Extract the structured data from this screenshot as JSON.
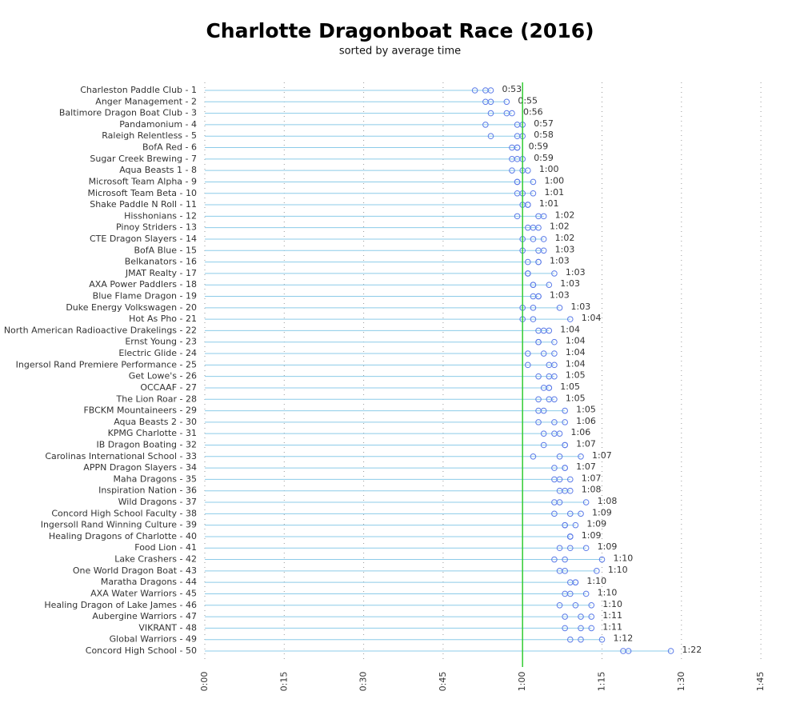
{
  "chart_data": {
    "type": "dotplot",
    "title": "Charlotte Dragonboat Race (2016)",
    "subtitle": "sorted by average time",
    "categories": [
      "Charleston Paddle Club - 1",
      "Anger Management - 2",
      "Baltimore Dragon Boat Club - 3",
      "Pandamonium - 4",
      "Raleigh Relentless - 5",
      "BofA Red - 6",
      "Sugar Creek Brewing - 7",
      "Aqua Beasts 1 - 8",
      "Microsoft Team Alpha - 9",
      "Microsoft Team Beta - 10",
      "Shake Paddle N Roll - 11",
      "Hisshonians - 12",
      "Pinoy Striders - 13",
      "CTE Dragon Slayers - 14",
      "BofA Blue - 15",
      "Belkanators - 16",
      "JMAT Realty - 17",
      "AXA Power Paddlers - 18",
      "Blue Flame Dragon - 19",
      "Duke Energy Volkswagen - 20",
      "Hot As Pho - 21",
      "North American Radioactive Drakelings - 22",
      "Ernst Young - 23",
      "Electric Glide - 24",
      "Ingersol Rand Premiere Performance - 25",
      "Get Lowe's - 26",
      "OCCAAF - 27",
      "The Lion Roar - 28",
      "FBCKM Mountaineers - 29",
      "Aqua Beasts 2 - 30",
      "KPMG Charlotte - 31",
      "IB Dragon Boating - 32",
      "Carolinas International School - 33",
      "APPN Dragon Slayers - 34",
      "Maha Dragons - 35",
      "Inspiration Nation - 36",
      "Wild Dragons - 37",
      "Concord High School Faculty - 38",
      "Ingersoll Rand Winning Culture - 39",
      "Healing Dragons of Charlotte - 40",
      "Food Lion - 41",
      "Lake Crashers - 42",
      "One World Dragon Boat - 43",
      "Maratha Dragons - 44",
      "AXA Water Warriors - 45",
      "Healing Dragon of Lake James - 46",
      "Aubergine Warriors - 47",
      "VIKRANT - 48",
      "Global Warriors - 49",
      "Concord High School - 50"
    ],
    "series": [
      {
        "color": "#5b7be8",
        "values": [
          51,
          53,
          54,
          53,
          54,
          58,
          58,
          58,
          59,
          59,
          60,
          59,
          61,
          60,
          60,
          61,
          61,
          62,
          62,
          60,
          60,
          63,
          63,
          61,
          61,
          63,
          64,
          63,
          63,
          63,
          64,
          64,
          62,
          66,
          66,
          67,
          66,
          66,
          68,
          69,
          67,
          66,
          67,
          69,
          68,
          67,
          68,
          68,
          69,
          79
        ]
      },
      {
        "color": "#5b7be8",
        "values": [
          53,
          54,
          57,
          59,
          59,
          59,
          59,
          60,
          59,
          60,
          61,
          63,
          62,
          62,
          63,
          63,
          61,
          62,
          63,
          62,
          62,
          64,
          63,
          64,
          65,
          65,
          65,
          65,
          64,
          66,
          66,
          68,
          67,
          68,
          67,
          68,
          67,
          69,
          68,
          69,
          69,
          68,
          68,
          70,
          69,
          70,
          71,
          71,
          71,
          80
        ]
      },
      {
        "color": "#5b7be8",
        "values": [
          54,
          57,
          58,
          60,
          60,
          59,
          60,
          61,
          62,
          62,
          61,
          64,
          63,
          64,
          64,
          63,
          66,
          65,
          63,
          67,
          69,
          65,
          66,
          66,
          66,
          66,
          65,
          66,
          68,
          68,
          67,
          68,
          71,
          68,
          69,
          69,
          72,
          71,
          70,
          69,
          72,
          75,
          74,
          70,
          72,
          73,
          73,
          73,
          75,
          88
        ]
      }
    ],
    "averages": [
      53,
      55,
      56,
      57,
      58,
      59,
      59,
      60,
      60,
      61,
      61,
      62,
      62,
      62,
      63,
      63,
      63,
      63,
      63,
      63,
      64,
      64,
      64,
      64,
      64,
      65,
      65,
      65,
      65,
      66,
      66,
      67,
      67,
      67,
      67,
      68,
      68,
      69,
      69,
      69,
      69,
      70,
      70,
      70,
      70,
      70,
      71,
      71,
      72,
      82
    ],
    "value_labels": [
      "0:53",
      "0:55",
      "0:56",
      "0:57",
      "0:58",
      "0:59",
      "0:59",
      "1:00",
      "1:00",
      "1:01",
      "1:01",
      "1:02",
      "1:02",
      "1:02",
      "1:03",
      "1:03",
      "1:03",
      "1:03",
      "1:03",
      "1:03",
      "1:04",
      "1:04",
      "1:04",
      "1:04",
      "1:04",
      "1:05",
      "1:05",
      "1:05",
      "1:05",
      "1:06",
      "1:06",
      "1:07",
      "1:07",
      "1:07",
      "1:07",
      "1:08",
      "1:08",
      "1:09",
      "1:09",
      "1:09",
      "1:09",
      "1:10",
      "1:10",
      "1:10",
      "1:10",
      "1:10",
      "1:11",
      "1:11",
      "1:12",
      "1:22"
    ],
    "reference_line": 60,
    "xlim": [
      0,
      106
    ],
    "xticks": [
      {
        "value": 0,
        "label": "0:00"
      },
      {
        "value": 15,
        "label": "0:15"
      },
      {
        "value": 30,
        "label": "0:30"
      },
      {
        "value": 45,
        "label": "0:45"
      },
      {
        "value": 60,
        "label": "1:00"
      },
      {
        "value": 75,
        "label": "1:15"
      },
      {
        "value": 90,
        "label": "1:30"
      },
      {
        "value": 105,
        "label": "1:45"
      }
    ],
    "grid": true
  }
}
